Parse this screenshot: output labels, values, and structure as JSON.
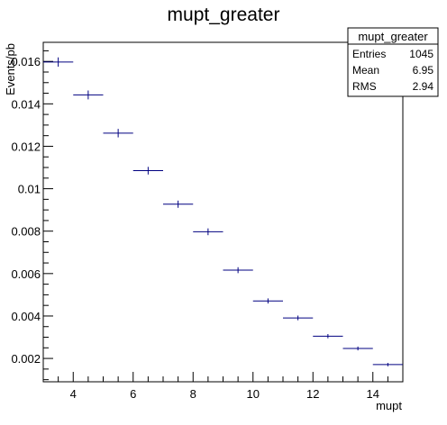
{
  "chart_data": {
    "type": "scatter",
    "title": "mupt_greater",
    "xlabel": "mupt",
    "ylabel": "Events/pb",
    "xlim": [
      3,
      15
    ],
    "ylim": [
      0.0009,
      0.0169
    ],
    "x_ticks": [
      4,
      6,
      8,
      10,
      12,
      14
    ],
    "y_ticks": [
      0.002,
      0.004,
      0.006,
      0.008,
      0.01,
      0.012,
      0.014,
      0.016
    ],
    "y_tick_labels": [
      "0.002",
      "0.004",
      "0.006",
      "0.008",
      "0.01",
      "0.012",
      "0.014",
      "0.016"
    ],
    "bin_width": 1,
    "x": [
      3.5,
      4.5,
      5.5,
      6.5,
      7.5,
      8.5,
      9.5,
      10.5,
      11.5,
      12.5,
      13.5,
      14.5
    ],
    "values": [
      0.01597,
      0.01442,
      0.01262,
      0.01085,
      0.00927,
      0.00797,
      0.00616,
      0.00471,
      0.00391,
      0.00305,
      0.00247,
      0.00171
    ],
    "errors": [
      0.00022,
      0.00021,
      0.0002,
      0.00018,
      0.00017,
      0.00016,
      0.00014,
      0.00012,
      0.00011,
      0.0001,
      9e-05,
      8e-05
    ],
    "marker_color": "#000080",
    "grid": false,
    "legend": "none",
    "stats": {
      "title": "mupt_greater",
      "rows": [
        {
          "label": "Entries",
          "value": "1045"
        },
        {
          "label": "Mean",
          "value": "6.95"
        },
        {
          "label": "RMS",
          "value": "2.94"
        }
      ]
    }
  }
}
